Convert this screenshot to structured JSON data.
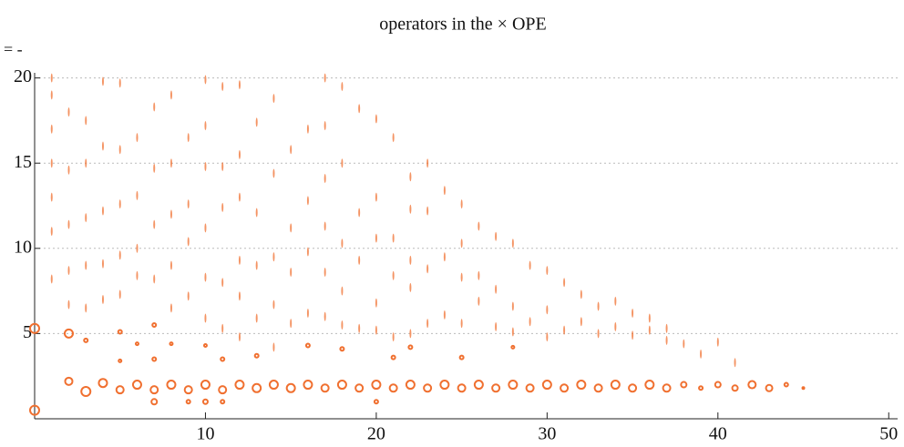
{
  "chart_data": {
    "type": "scatter",
    "title": "operators in the × OPE",
    "corner_label": "= -",
    "xlim": [
      0,
      50.2
    ],
    "ylim": [
      0,
      20.3
    ],
    "xticks": [
      10,
      20,
      30,
      40,
      50
    ],
    "yticks": [
      5,
      10,
      15,
      20
    ],
    "grid": true,
    "series": [
      {
        "color": "#f07030",
        "filled": false,
        "x": [
          0,
          0,
          2,
          2,
          3,
          3,
          4,
          5,
          5,
          5,
          6,
          6,
          7,
          7,
          7,
          7,
          8,
          8,
          9,
          9,
          10,
          10,
          10,
          11,
          11,
          11,
          12,
          13,
          13,
          14,
          15,
          16,
          16,
          17,
          18,
          18,
          19,
          20,
          20,
          21,
          21,
          22,
          22,
          23,
          24,
          25,
          25,
          26,
          27,
          28,
          28,
          29,
          30,
          31,
          32,
          33,
          34,
          35,
          36,
          37,
          38,
          39,
          40,
          41,
          42,
          43,
          44,
          45
        ],
        "y": [
          0.5,
          5.3,
          2.2,
          5,
          1.6,
          4.6,
          2.1,
          1.7,
          3.4,
          5.1,
          2.0,
          4.4,
          1.7,
          1.0,
          3.5,
          5.5,
          2.0,
          4.4,
          1.7,
          1.0,
          2.0,
          1.0,
          4.3,
          1.7,
          1.0,
          3.5,
          2.0,
          1.8,
          3.7,
          2.0,
          1.8,
          2.0,
          4.3,
          1.8,
          2.0,
          4.1,
          1.8,
          2.0,
          1.0,
          1.8,
          3.6,
          2.0,
          4.2,
          1.8,
          2.0,
          1.8,
          3.6,
          2.0,
          1.8,
          2.0,
          4.2,
          1.8,
          2.0,
          1.8,
          2.0,
          1.8,
          2.0,
          1.8,
          2.0,
          1.8,
          2.0,
          1.8,
          2.0,
          1.8,
          2.0,
          1.8,
          2.0,
          1.8
        ],
        "size": [
          5,
          5,
          4,
          4.5,
          5,
          2,
          4.5,
          4,
          1.5,
          2,
          4.5,
          1.5,
          4,
          3,
          2,
          2,
          4.5,
          1.5,
          4,
          2,
          4.5,
          2.5,
          1.5,
          4,
          2,
          2,
          4.5,
          4.5,
          2,
          4.5,
          4.5,
          4.5,
          2,
          4,
          4.5,
          2,
          4,
          4.5,
          2,
          4,
          2,
          4.5,
          2,
          4,
          4.5,
          4,
          2,
          4.5,
          4,
          4.5,
          1.5,
          4,
          4.5,
          4,
          4.5,
          4,
          4.5,
          4,
          4.5,
          4,
          3,
          2,
          3,
          3,
          4,
          3.5,
          2,
          1
        ]
      },
      {
        "color": "#f07030",
        "filled": true,
        "x": [
          1,
          1,
          1,
          1,
          1,
          1,
          1,
          2,
          2,
          2,
          2,
          2,
          3,
          3,
          3,
          3,
          3,
          4,
          4,
          4,
          4,
          4,
          5,
          5,
          5,
          5,
          5,
          6,
          6,
          6,
          6,
          7,
          7,
          7,
          7,
          8,
          8,
          8,
          8,
          8,
          9,
          9,
          9,
          9,
          10,
          10,
          10,
          10,
          10,
          10,
          11,
          11,
          11,
          11,
          11,
          12,
          12,
          12,
          12,
          12,
          12,
          13,
          13,
          13,
          13,
          14,
          14,
          14,
          14,
          14,
          15,
          15,
          15,
          15,
          16,
          16,
          16,
          16,
          17,
          17,
          17,
          17,
          17,
          17,
          18,
          18,
          18,
          18,
          18,
          19,
          19,
          19,
          19,
          20,
          20,
          20,
          20,
          20,
          21,
          21,
          21,
          21,
          22,
          22,
          22,
          22,
          22,
          23,
          23,
          23,
          23,
          24,
          24,
          24,
          25,
          25,
          25,
          25,
          26,
          26,
          26,
          27,
          27,
          27,
          28,
          28,
          28,
          29,
          29,
          30,
          30,
          30,
          31,
          31,
          32,
          32,
          33,
          33,
          34,
          34,
          35,
          35,
          36,
          36,
          37,
          37,
          38,
          39,
          40,
          41
        ],
        "y": [
          8.2,
          11,
          13,
          15,
          17,
          19,
          20,
          6.7,
          8.7,
          11.4,
          14.6,
          18,
          6.5,
          9,
          11.8,
          15,
          17.5,
          7,
          9.1,
          12.2,
          16,
          19.8,
          7.3,
          9.6,
          12.6,
          15.8,
          19.7,
          8.4,
          10,
          13.1,
          16.5,
          8.2,
          11.4,
          14.7,
          18.3,
          6.5,
          9,
          12,
          15,
          19,
          7.2,
          10.4,
          12.6,
          16.5,
          5.9,
          8.3,
          11.2,
          14.8,
          17.2,
          19.9,
          5.3,
          8,
          12.4,
          14.8,
          19.5,
          4.8,
          7.2,
          9.3,
          13,
          15.5,
          19.6,
          5.9,
          9,
          12.1,
          17.4,
          4.2,
          6.7,
          9.5,
          14.4,
          18.8,
          5.6,
          8.6,
          11.2,
          15.8,
          6.2,
          9.8,
          12.8,
          17,
          6,
          8.6,
          11.3,
          14.1,
          17.2,
          20,
          5.5,
          7.5,
          10.3,
          15,
          19.5,
          5.3,
          9.3,
          12.1,
          18.2,
          5.2,
          6.8,
          10.6,
          13,
          17.6,
          4.8,
          8.4,
          10.6,
          16.5,
          5,
          7.7,
          9.3,
          12.3,
          14.2,
          5.6,
          8.8,
          12.2,
          15,
          6.1,
          9.5,
          13.4,
          5.6,
          8.3,
          10.3,
          12.6,
          6.9,
          8.4,
          11.3,
          5.4,
          7.6,
          10.7,
          5.1,
          6.6,
          10.3,
          5.7,
          9,
          4.8,
          6.4,
          8.7,
          5.2,
          8,
          5.7,
          7.3,
          5,
          6.6,
          5.4,
          6.9,
          4.9,
          6.2,
          5.2,
          5.9,
          4.6,
          5.3,
          4.4,
          3.8,
          4.5,
          3.3
        ]
      }
    ]
  }
}
